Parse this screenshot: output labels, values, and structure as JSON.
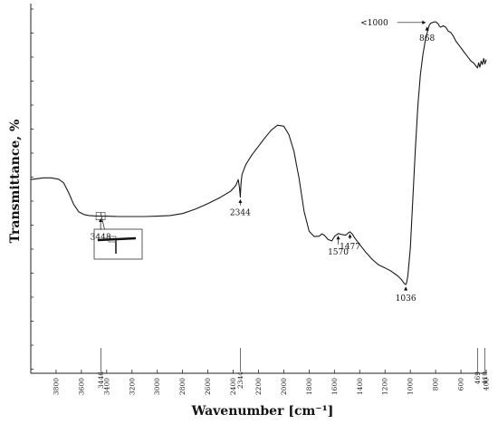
{
  "chart_data": {
    "type": "line",
    "title": "",
    "xlabel": "Wavenumber [cm⁻¹]",
    "ylabel": "Transmittance, %",
    "xlim": [
      4000,
      400
    ],
    "x_reversed": true,
    "x_ticks": [
      3800,
      3600,
      3400,
      3200,
      3000,
      2800,
      2600,
      2400,
      2200,
      2000,
      1800,
      1600,
      1400,
      1200,
      1000,
      800,
      600,
      400
    ],
    "y_ticks_labeled": false,
    "grid": false,
    "series": [
      {
        "name": "",
        "x": [
          4000,
          3900,
          3840,
          3780,
          3740,
          3700,
          3660,
          3620,
          3580,
          3540,
          3500,
          3448,
          3400,
          3300,
          3200,
          3100,
          3000,
          2900,
          2800,
          2700,
          2600,
          2500,
          2420,
          2380,
          2360,
          2350,
          2344,
          2338,
          2330,
          2300,
          2250,
          2200,
          2150,
          2100,
          2050,
          2000,
          1960,
          1920,
          1880,
          1840,
          1800,
          1760,
          1720,
          1700,
          1680,
          1650,
          1620,
          1600,
          1570,
          1540,
          1510,
          1490,
          1477,
          1460,
          1440,
          1400,
          1350,
          1300,
          1250,
          1200,
          1150,
          1100,
          1070,
          1050,
          1036,
          1030,
          1020,
          1000,
          980,
          960,
          940,
          920,
          900,
          880,
          860,
          850,
          840,
          820,
          800,
          780,
          770,
          760,
          740,
          720,
          700,
          680,
          660,
          640,
          620,
          600,
          580,
          560,
          540,
          520,
          500,
          480,
          469,
          460,
          450,
          440,
          430,
          420,
          410,
          400
        ],
        "y": [
          50.5,
          51.0,
          51.0,
          50.6,
          49.5,
          46.5,
          43.0,
          40.8,
          40.0,
          39.7,
          39.6,
          39.5,
          39.5,
          39.4,
          39.4,
          39.4,
          39.5,
          39.7,
          40.3,
          41.6,
          43.3,
          45.2,
          47.0,
          48.7,
          50.5,
          48.0,
          45.2,
          49.5,
          52.0,
          55.0,
          58.0,
          60.5,
          63.0,
          65.3,
          66.8,
          66.5,
          64.0,
          59.0,
          51.0,
          41.0,
          35.0,
          33.4,
          33.5,
          34.2,
          33.8,
          32.5,
          32.1,
          33.4,
          34.3,
          34.0,
          33.8,
          34.5,
          34.8,
          34.2,
          33.0,
          31.0,
          28.6,
          26.5,
          24.9,
          24.0,
          23.0,
          21.6,
          20.5,
          19.4,
          19.0,
          19.5,
          21.5,
          30.0,
          45.0,
          60.0,
          73.0,
          82.0,
          88.0,
          92.5,
          95.5,
          96.8,
          97.3,
          97.7,
          97.8,
          97.2,
          96.5,
          96.2,
          96.6,
          96.2,
          95.0,
          94.6,
          93.5,
          92.0,
          91.0,
          90.0,
          89.0,
          88.0,
          87.0,
          86.0,
          85.5,
          84.5,
          84.0,
          85.5,
          84.2,
          86.0,
          85.0,
          86.8,
          85.2,
          86.5
        ]
      }
    ],
    "annotations": [
      {
        "label": "<1000",
        "x": 860,
        "y": 97.6,
        "dx": -44,
        "dy": 0
      },
      {
        "label": "868",
        "x": 868,
        "y": 97.0,
        "dx": 0,
        "dy": 16
      },
      {
        "label": "2344",
        "x": 2344,
        "y": 45.2,
        "dx": 0,
        "dy": 18
      },
      {
        "label": "3448",
        "x": 3448,
        "y": 39.5,
        "dx": 0,
        "dy": 24
      },
      {
        "label": "1570",
        "x": 1570,
        "y": 34.3,
        "dx": 0,
        "dy": 21
      },
      {
        "label": "1477",
        "x": 1477,
        "y": 34.8,
        "dx": 0,
        "dy": 17
      },
      {
        "label": "1036",
        "x": 1036,
        "y": 19.0,
        "dx": 0,
        "dy": 16
      }
    ],
    "bottom_markers": [
      {
        "label": "3446",
        "x": 3446
      },
      {
        "label": "2344",
        "x": 2344
      },
      {
        "label": "469",
        "x": 469
      },
      {
        "label": "410",
        "x": 410
      }
    ]
  }
}
